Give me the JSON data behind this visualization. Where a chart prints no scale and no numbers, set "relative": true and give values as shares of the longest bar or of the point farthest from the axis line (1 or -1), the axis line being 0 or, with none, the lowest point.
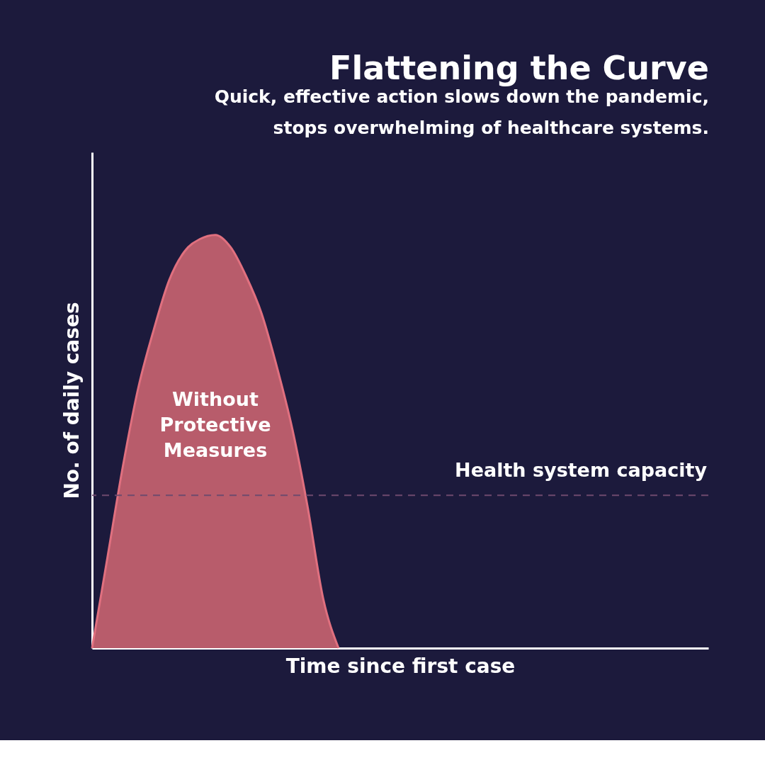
{
  "chart_data": {
    "type": "area",
    "title": "Flattening the Curve",
    "subtitle": "Quick, effective action slows down the pandemic, stops overwhelming of healthcare systems.",
    "xlabel": "Time since first case",
    "ylabel": "No. of daily cases",
    "relative": true,
    "categories": [
      null,
      null,
      null,
      null,
      null,
      null,
      null,
      null,
      null,
      null,
      null,
      null,
      null,
      null,
      null,
      null,
      null,
      null,
      null,
      null,
      null,
      null,
      null,
      null,
      null,
      null,
      null,
      null,
      null,
      null,
      null,
      null,
      null,
      null,
      null,
      null,
      null,
      null,
      null,
      null,
      null
    ],
    "series": [
      {
        "name": "Without Protective Measures",
        "color": "#b85c6b",
        "values": [
          0,
          0.22,
          0.44,
          0.63,
          0.77,
          0.89,
          0.96,
          0.99,
          1,
          0.97,
          0.9,
          0.81,
          0.68,
          0.53,
          0.34,
          0.12,
          0,
          null,
          null,
          null,
          null,
          null,
          null,
          null,
          null,
          null,
          null,
          null,
          null,
          null,
          null,
          null,
          null,
          null,
          null,
          null,
          null,
          null,
          null,
          null,
          null
        ]
      }
    ],
    "ref_lines": [
      {
        "axis": "y",
        "value": 0.37,
        "label": "Health system capacity",
        "color": "#6e4a6e",
        "line_style": "dashed"
      }
    ],
    "grid": false
  }
}
